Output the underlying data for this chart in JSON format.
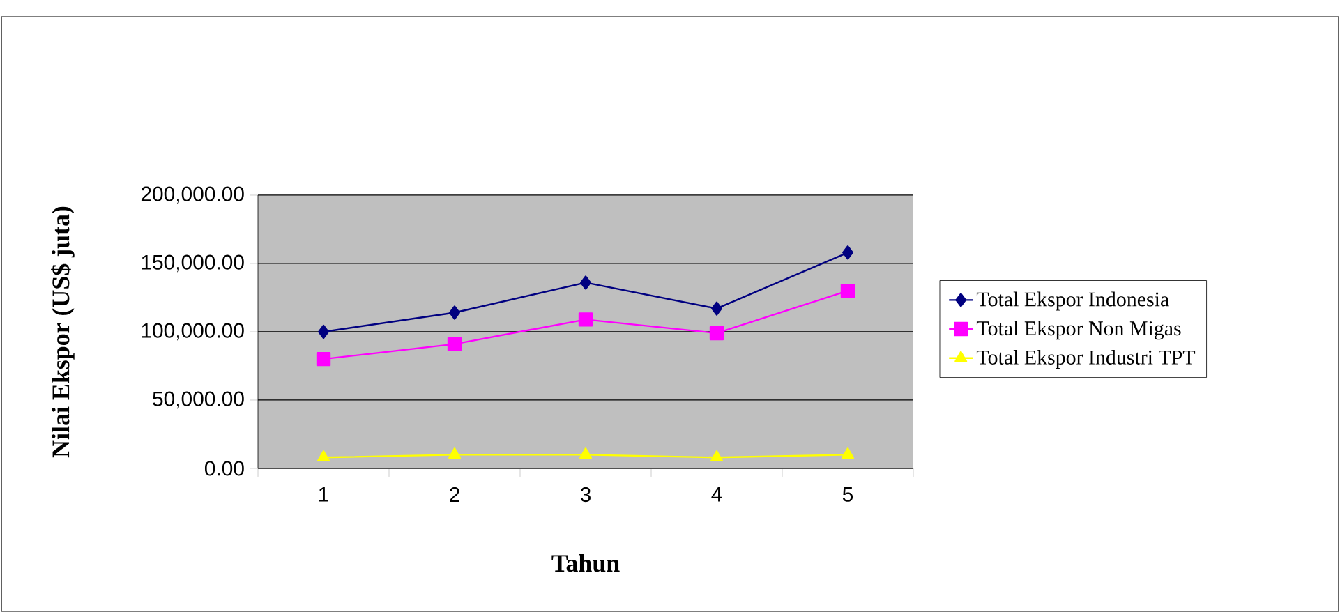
{
  "chart_data": {
    "type": "line",
    "xlabel": "Tahun",
    "ylabel": "Nilai Ekspor (US$ juta)",
    "categories": [
      "1",
      "2",
      "3",
      "4",
      "5"
    ],
    "series": [
      {
        "name": "Total Ekspor Indonesia",
        "color": "#000080",
        "marker": "diamond",
        "values": [
          100000,
          114000,
          136000,
          117000,
          158000
        ]
      },
      {
        "name": "Total Ekspor Non Migas",
        "color": "#ff00ff",
        "marker": "square",
        "values": [
          80000,
          91000,
          109000,
          99000,
          130000
        ]
      },
      {
        "name": "Total Ekspor Industri TPT",
        "color": "#ffff00",
        "marker": "triangle",
        "values": [
          8000,
          10000,
          10000,
          8000,
          10000
        ]
      }
    ],
    "ylim": [
      0,
      200000
    ],
    "yticks": [
      {
        "value": 0,
        "label": "0.00"
      },
      {
        "value": 50000,
        "label": "50,000.00"
      },
      {
        "value": 100000,
        "label": "100,000.00"
      },
      {
        "value": 150000,
        "label": "150,000.00"
      },
      {
        "value": 200000,
        "label": "200,000.00"
      }
    ],
    "grid": "y",
    "legend": "right",
    "line_style": "solid"
  }
}
